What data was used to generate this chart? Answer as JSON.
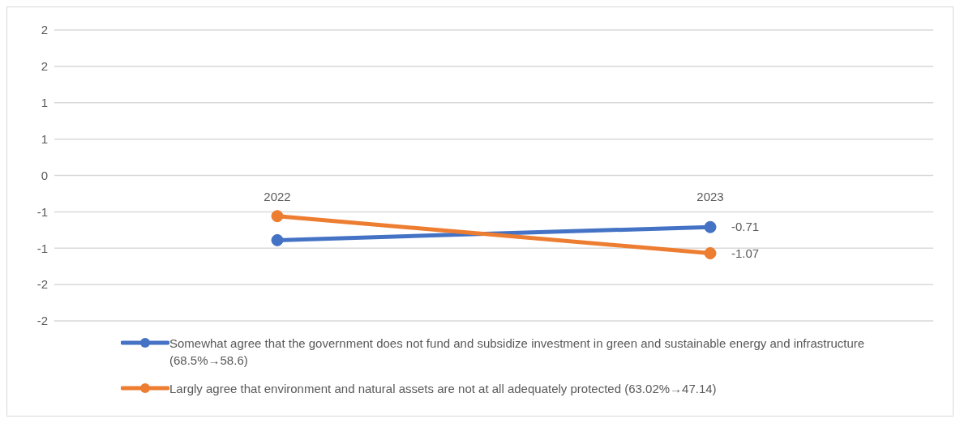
{
  "chart_data": {
    "type": "line",
    "categories": [
      "2022",
      "2023"
    ],
    "series": [
      {
        "name": "Somewhat agree that the government does not fund and subsidize investment in green and sustainable energy and infrastructure (68.5%→58.6)",
        "color": "#4472c4",
        "values": [
          -0.89,
          -0.71
        ],
        "value_labels": [
          null,
          "-0.71"
        ]
      },
      {
        "name": "Largly agree that environment and natural assets are not at all adequately protected (63.02%→47.14)",
        "color": "#ed7d31",
        "values": [
          -0.56,
          -1.07
        ],
        "value_labels": [
          null,
          "-1.07"
        ]
      }
    ],
    "ylim": [
      -2,
      2
    ],
    "yticks": [
      {
        "value": -2,
        "label": "-2"
      },
      {
        "value": -1.5,
        "label": "-2"
      },
      {
        "value": -1,
        "label": "-1"
      },
      {
        "value": -0.5,
        "label": "-1"
      },
      {
        "value": 0,
        "label": "0"
      },
      {
        "value": 0.5,
        "label": "1"
      },
      {
        "value": 1,
        "label": "1"
      },
      {
        "value": 1.5,
        "label": "2"
      },
      {
        "value": 2,
        "label": "2"
      }
    ],
    "grid": "y",
    "legend": "bottom",
    "marker": "circle",
    "line_style": "solid"
  }
}
